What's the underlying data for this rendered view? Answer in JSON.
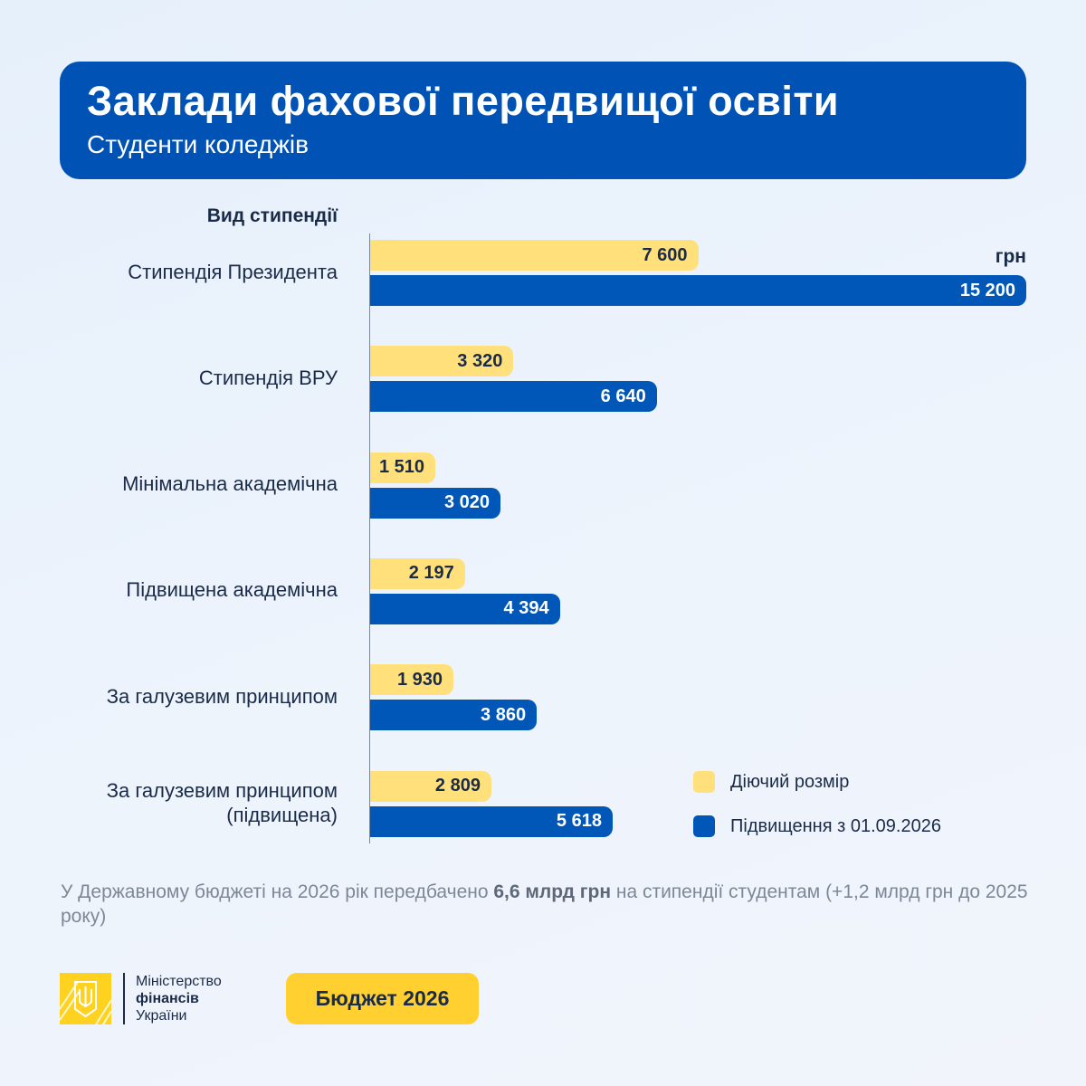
{
  "header": {
    "title": "Заклади фахової передвищої освіти",
    "subtitle": "Студенти коледжів"
  },
  "chart_data": {
    "type": "bar",
    "orientation": "horizontal",
    "category_header": "Вид стипендії",
    "unit": "грн",
    "categories": [
      "Стипендія Президента",
      "Стипендія ВРУ",
      "Мінімальна академічна",
      "Підвищена академічна",
      "За галузевим принципом",
      "За галузевим принципом (підвищена)"
    ],
    "category_lines": [
      [
        "Стипендія Президента"
      ],
      [
        "Стипендія ВРУ"
      ],
      [
        "Мінімальна академічна"
      ],
      [
        "Підвищена академічна"
      ],
      [
        "За галузевим принципом"
      ],
      [
        "За галузевим принципом",
        "(підвищена)"
      ]
    ],
    "series": [
      {
        "name": "Діючий розмір",
        "color": "#ffe07a",
        "values": [
          7600,
          3320,
          1510,
          2197,
          1930,
          2809
        ],
        "labels": [
          "7 600",
          "3 320",
          "1 510",
          "2 197",
          "1 930",
          "2 809"
        ]
      },
      {
        "name": "Підвищення з 01.09.2026",
        "color": "#0057b8",
        "values": [
          15200,
          6640,
          3020,
          4394,
          3860,
          5618
        ],
        "labels": [
          "15 200",
          "6 640",
          "3 020",
          "4 394",
          "3 860",
          "5 618"
        ]
      }
    ],
    "xlim": [
      0,
      15200
    ],
    "grid": false,
    "legend": "bottom-right"
  },
  "note": {
    "before": "У Державному бюджеті на 2026 рік передбачено ",
    "bold": "6,6 млрд грн",
    "after": " на стипендії студентам (+1,2 млрд грн до 2025 року)"
  },
  "footer": {
    "ministry_line1": "Міністерство",
    "ministry_line2": "фінансів",
    "ministry_line3": "України",
    "badge": "Бюджет 2026",
    "logo_icon": "trident-emblem-icon"
  }
}
